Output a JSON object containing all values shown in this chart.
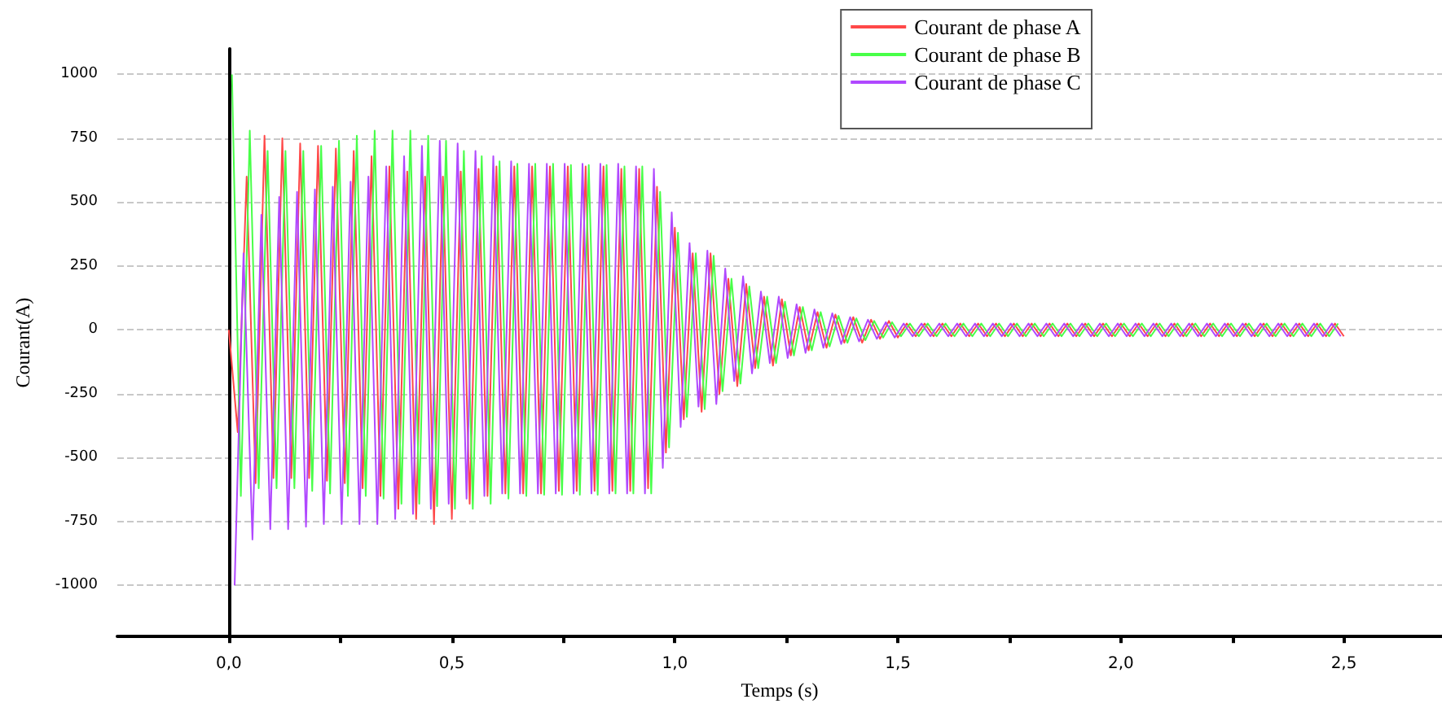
{
  "chart_data": {
    "type": "line",
    "xlabel": "Temps (s)",
    "ylabel": "Courant(A)",
    "xlim": [
      -0.25,
      2.72
    ],
    "ylim": [
      -1200,
      1100
    ],
    "xticks": [
      {
        "value": 0,
        "label": "0,0"
      },
      {
        "value": 0.25,
        "label": null
      },
      {
        "value": 0.5,
        "label": "0,5"
      },
      {
        "value": 0.75,
        "label": null
      },
      {
        "value": 1,
        "label": "1,0"
      },
      {
        "value": 1.25,
        "label": null
      },
      {
        "value": 1.5,
        "label": "1,5"
      },
      {
        "value": 1.75,
        "label": null
      },
      {
        "value": 2,
        "label": "2,0"
      },
      {
        "value": 2.25,
        "label": null
      },
      {
        "value": 2.5,
        "label": "2,5"
      }
    ],
    "yticks": [
      -1000,
      -750,
      -500,
      -250,
      0,
      250,
      500,
      750,
      1000
    ],
    "grid": "y",
    "legend": "top right",
    "marker": "none",
    "line_style": "solid",
    "series": [
      {
        "name": "Courant de phase A",
        "color": "#ff4848",
        "x": [
          0,
          0.02,
          0.04,
          0.06,
          0.08,
          0.1,
          0.12,
          0.14,
          0.16,
          0.18,
          0.2,
          0.22,
          0.24,
          0.26,
          0.28,
          0.3,
          0.32,
          0.34,
          0.36,
          0.38,
          0.4,
          0.42,
          0.44,
          0.46,
          0.48,
          0.5,
          0.52,
          0.54,
          0.56,
          0.58,
          0.6,
          0.62,
          0.64,
          0.66,
          0.68,
          0.7,
          0.72,
          0.74,
          0.76,
          0.78,
          0.8,
          0.82,
          0.84,
          0.86,
          0.88,
          0.9,
          0.92,
          0.94,
          0.96,
          0.98,
          1,
          1.02,
          1.04,
          1.06,
          1.08,
          1.1,
          1.12,
          1.14,
          1.16,
          1.18,
          1.2,
          1.22,
          1.24,
          1.26,
          1.28,
          1.3,
          1.32,
          1.34,
          1.36,
          1.38,
          1.4,
          1.42,
          1.44,
          1.46,
          1.48,
          1.5,
          1.52,
          1.54,
          1.56,
          1.58,
          1.6,
          1.62,
          1.64,
          1.66,
          1.68,
          1.7,
          1.72,
          1.74,
          1.76,
          1.78,
          1.8,
          1.82,
          1.84,
          1.86,
          1.88,
          1.9,
          1.92,
          1.94,
          1.96,
          1.98,
          2,
          2.02,
          2.04,
          2.06,
          2.08,
          2.1,
          2.12,
          2.14,
          2.16,
          2.18,
          2.2,
          2.22,
          2.24,
          2.26,
          2.28,
          2.3,
          2.32,
          2.34,
          2.36,
          2.38,
          2.4,
          2.42,
          2.44,
          2.46,
          2.48,
          2.5
        ],
        "values": [
          0,
          -400,
          600,
          -600,
          760,
          -580,
          750,
          -580,
          730,
          -580,
          720,
          -590,
          710,
          -600,
          700,
          -620,
          680,
          -650,
          640,
          -700,
          620,
          -740,
          600,
          -760,
          600,
          -740,
          620,
          -680,
          630,
          -650,
          640,
          -640,
          640,
          -640,
          640,
          -640,
          640,
          -630,
          640,
          -630,
          640,
          -630,
          640,
          -630,
          630,
          -630,
          630,
          -620,
          560,
          -480,
          400,
          -350,
          300,
          -320,
          300,
          -250,
          200,
          -220,
          180,
          -150,
          130,
          -140,
          120,
          -100,
          90,
          -80,
          70,
          -70,
          60,
          -50,
          50,
          -50,
          40,
          -35,
          35,
          -30,
          25,
          -25,
          25,
          -25,
          25,
          -25,
          25,
          -25,
          25,
          -25,
          25,
          -25,
          25,
          -25,
          25,
          -25,
          25,
          -25,
          25,
          -25,
          25,
          -25,
          25,
          -25,
          25,
          -25,
          25,
          -25,
          25,
          -25,
          25,
          -25,
          25,
          -25,
          25,
          -25,
          25,
          -25,
          25,
          -25,
          25,
          -25,
          25,
          -25,
          25,
          -25,
          25,
          -25,
          25,
          -25
        ]
      },
      {
        "name": "Courant de phase B",
        "color": "#48ff48",
        "x": [
          0.007,
          0.027,
          0.047,
          0.067,
          0.087,
          0.107,
          0.127,
          0.147,
          0.167,
          0.187,
          0.207,
          0.227,
          0.247,
          0.267,
          0.287,
          0.307,
          0.327,
          0.347,
          0.367,
          0.387,
          0.407,
          0.427,
          0.447,
          0.467,
          0.487,
          0.507,
          0.527,
          0.547,
          0.567,
          0.587,
          0.607,
          0.627,
          0.647,
          0.667,
          0.687,
          0.707,
          0.727,
          0.747,
          0.767,
          0.787,
          0.807,
          0.827,
          0.847,
          0.867,
          0.887,
          0.907,
          0.927,
          0.947,
          0.967,
          0.987,
          1.007,
          1.027,
          1.047,
          1.067,
          1.087,
          1.107,
          1.127,
          1.147,
          1.167,
          1.187,
          1.207,
          1.227,
          1.247,
          1.267,
          1.287,
          1.307,
          1.327,
          1.347,
          1.367,
          1.387,
          1.407,
          1.427,
          1.447,
          1.467,
          1.487,
          1.507,
          1.527,
          1.547,
          1.567,
          1.587,
          1.607,
          1.627,
          1.647,
          1.667,
          1.687,
          1.707,
          1.727,
          1.747,
          1.767,
          1.787,
          1.807,
          1.827,
          1.847,
          1.867,
          1.887,
          1.907,
          1.927,
          1.947,
          1.967,
          1.987,
          2.007,
          2.027,
          2.047,
          2.067,
          2.087,
          2.107,
          2.127,
          2.147,
          2.167,
          2.187,
          2.207,
          2.227,
          2.247,
          2.267,
          2.287,
          2.307,
          2.327,
          2.347,
          2.367,
          2.387,
          2.407,
          2.427,
          2.447,
          2.467,
          2.487
        ],
        "values": [
          1000,
          -650,
          780,
          -620,
          700,
          -620,
          700,
          -620,
          700,
          -630,
          720,
          -640,
          740,
          -650,
          760,
          -650,
          780,
          -660,
          780,
          -680,
          780,
          -680,
          760,
          -690,
          740,
          -700,
          700,
          -700,
          680,
          -680,
          660,
          -660,
          650,
          -650,
          650,
          -645,
          650,
          -645,
          645,
          -645,
          645,
          -645,
          645,
          -640,
          640,
          -640,
          640,
          -640,
          540,
          -460,
          380,
          -340,
          300,
          -310,
          290,
          -240,
          200,
          -210,
          170,
          -150,
          130,
          -130,
          110,
          -100,
          90,
          -80,
          70,
          -65,
          55,
          -50,
          45,
          -40,
          35,
          -30,
          30,
          -25,
          25,
          -25,
          25,
          -25,
          25,
          -25,
          25,
          -25,
          25,
          -25,
          25,
          -25,
          25,
          -25,
          25,
          -25,
          25,
          -25,
          25,
          -25,
          25,
          -25,
          25,
          -25,
          25,
          -25,
          25,
          -25,
          25,
          -25,
          25,
          -25,
          25,
          -25,
          25,
          -25,
          25,
          -25,
          25,
          -25,
          25,
          -25,
          25,
          -25,
          25,
          -25,
          25,
          -25,
          25
        ]
      },
      {
        "name": "Courant de phase C",
        "color": "#b048ff",
        "x": [
          0.013,
          0.033,
          0.053,
          0.073,
          0.093,
          0.113,
          0.133,
          0.153,
          0.173,
          0.193,
          0.213,
          0.233,
          0.253,
          0.273,
          0.293,
          0.313,
          0.333,
          0.353,
          0.373,
          0.393,
          0.413,
          0.433,
          0.453,
          0.473,
          0.493,
          0.513,
          0.533,
          0.553,
          0.573,
          0.593,
          0.613,
          0.633,
          0.653,
          0.673,
          0.693,
          0.713,
          0.733,
          0.753,
          0.773,
          0.793,
          0.813,
          0.833,
          0.853,
          0.873,
          0.893,
          0.913,
          0.933,
          0.953,
          0.973,
          0.993,
          1.013,
          1.033,
          1.053,
          1.073,
          1.093,
          1.113,
          1.133,
          1.153,
          1.173,
          1.193,
          1.213,
          1.233,
          1.253,
          1.273,
          1.293,
          1.313,
          1.333,
          1.353,
          1.373,
          1.393,
          1.413,
          1.433,
          1.453,
          1.473,
          1.493,
          1.513,
          1.533,
          1.553,
          1.573,
          1.593,
          1.613,
          1.633,
          1.653,
          1.673,
          1.693,
          1.713,
          1.733,
          1.753,
          1.773,
          1.793,
          1.813,
          1.833,
          1.853,
          1.873,
          1.893,
          1.913,
          1.933,
          1.953,
          1.973,
          1.993,
          2.013,
          2.033,
          2.053,
          2.073,
          2.093,
          2.113,
          2.133,
          2.153,
          2.173,
          2.193,
          2.213,
          2.233,
          2.253,
          2.273,
          2.293,
          2.313,
          2.333,
          2.353,
          2.373,
          2.393,
          2.413,
          2.433,
          2.453,
          2.473,
          2.493
        ],
        "values": [
          -1000,
          300,
          -820,
          450,
          -780,
          520,
          -780,
          540,
          -770,
          550,
          -760,
          560,
          -760,
          580,
          -760,
          600,
          -760,
          640,
          -740,
          680,
          -720,
          720,
          -700,
          740,
          -680,
          730,
          -660,
          700,
          -650,
          680,
          -640,
          660,
          -640,
          650,
          -640,
          650,
          -640,
          650,
          -640,
          650,
          -640,
          650,
          -640,
          650,
          -640,
          640,
          -640,
          630,
          -540,
          460,
          -380,
          340,
          -300,
          310,
          -290,
          240,
          -200,
          210,
          -170,
          150,
          -130,
          130,
          -110,
          100,
          -90,
          80,
          -70,
          65,
          -55,
          50,
          -45,
          40,
          -35,
          30,
          -30,
          25,
          -25,
          25,
          -25,
          25,
          -25,
          25,
          -25,
          25,
          -25,
          25,
          -25,
          25,
          -25,
          25,
          -25,
          25,
          -25,
          25,
          -25,
          25,
          -25,
          25,
          -25,
          25,
          -25,
          25,
          -25,
          25,
          -25,
          25,
          -25,
          25,
          -25,
          25,
          -25,
          25,
          -25,
          25,
          -25,
          25,
          -25,
          25,
          -25,
          25,
          -25,
          25,
          -25,
          25,
          -25
        ]
      }
    ]
  }
}
